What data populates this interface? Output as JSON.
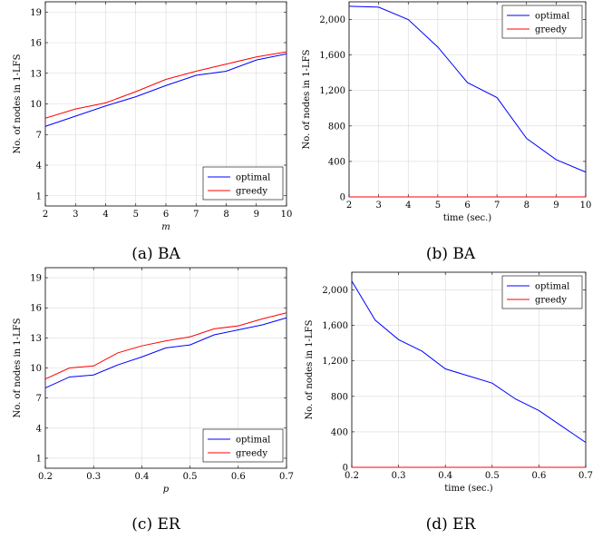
{
  "colors": {
    "optimal": "#0000ff",
    "greedy": "#ff0000",
    "grid": "#d9d9d9",
    "axis": "#000000"
  },
  "chart_data": [
    {
      "type": "line",
      "caption": "(a) BA",
      "xlabel": "m",
      "ylabel": "No. of nodes in 1-LFS",
      "x": [
        2,
        3,
        4,
        5,
        6,
        7,
        8,
        9,
        10
      ],
      "xticks": [
        "2",
        "3",
        "4",
        "5",
        "6",
        "7",
        "8",
        "9",
        "10"
      ],
      "xlim": [
        2,
        10
      ],
      "yticks": [
        "1",
        "4",
        "7",
        "10",
        "13",
        "16",
        "19"
      ],
      "ylim": [
        0,
        20
      ],
      "grid": true,
      "legend_position": "bottom-right",
      "series": [
        {
          "name": "optimal",
          "color": "#0000ff",
          "values": [
            7.8,
            8.8,
            9.8,
            10.7,
            11.8,
            12.8,
            13.2,
            14.3,
            14.9
          ]
        },
        {
          "name": "greedy",
          "color": "#ff0000",
          "values": [
            8.6,
            9.5,
            10.1,
            11.2,
            12.4,
            13.2,
            13.9,
            14.6,
            15.1
          ]
        }
      ]
    },
    {
      "type": "line",
      "caption": "(b) BA",
      "xlabel": "time (sec.)",
      "ylabel": "No. of nodes in 1-LFS",
      "x": [
        2,
        3,
        4,
        5,
        6,
        7,
        8,
        9,
        10
      ],
      "xticks": [
        "2",
        "3",
        "4",
        "5",
        "6",
        "7",
        "8",
        "9",
        "10"
      ],
      "xlim": [
        2,
        10
      ],
      "yticks": [
        "0",
        "400",
        "800",
        "1,200",
        "1,600",
        "2,000"
      ],
      "ylim": [
        0,
        2200
      ],
      "grid": true,
      "legend_position": "top-right",
      "series": [
        {
          "name": "optimal",
          "color": "#0000ff",
          "values": [
            2150,
            2140,
            2000,
            1690,
            1290,
            1120,
            660,
            420,
            280
          ]
        },
        {
          "name": "greedy",
          "color": "#ff0000",
          "values": [
            0,
            0,
            0,
            0,
            0,
            0,
            0,
            0,
            0
          ]
        }
      ]
    },
    {
      "type": "line",
      "caption": "(c) ER",
      "xlabel": "p",
      "ylabel": "No. of nodes in 1-LFS",
      "x": [
        0.2,
        0.25,
        0.3,
        0.35,
        0.4,
        0.45,
        0.5,
        0.55,
        0.6,
        0.65,
        0.7
      ],
      "xticks": [
        "0.2",
        "0.3",
        "0.4",
        "0.5",
        "0.6",
        "0.7"
      ],
      "xtick_values": [
        0.2,
        0.3,
        0.4,
        0.5,
        0.6,
        0.7
      ],
      "xlim": [
        0.2,
        0.7
      ],
      "yticks": [
        "1",
        "4",
        "7",
        "10",
        "13",
        "16",
        "19"
      ],
      "ylim": [
        0,
        20
      ],
      "grid": true,
      "legend_position": "bottom-right",
      "series": [
        {
          "name": "optimal",
          "color": "#0000ff",
          "values": [
            8.0,
            9.1,
            9.3,
            10.3,
            11.1,
            12.0,
            12.3,
            13.3,
            13.8,
            14.3,
            15.0
          ]
        },
        {
          "name": "greedy",
          "color": "#ff0000",
          "values": [
            8.9,
            10.0,
            10.2,
            11.5,
            12.2,
            12.7,
            13.1,
            13.9,
            14.2,
            14.9,
            15.5
          ]
        }
      ]
    },
    {
      "type": "line",
      "caption": "(d) ER",
      "xlabel": "time (sec.)",
      "ylabel": "No. of nodes in 1-LFS",
      "x": [
        0.2,
        0.25,
        0.3,
        0.35,
        0.4,
        0.45,
        0.5,
        0.55,
        0.6,
        0.65,
        0.7
      ],
      "xticks": [
        "0.2",
        "0.3",
        "0.4",
        "0.5",
        "0.6",
        "0.7"
      ],
      "xtick_values": [
        0.2,
        0.3,
        0.4,
        0.5,
        0.6,
        0.7
      ],
      "xlim": [
        0.2,
        0.7
      ],
      "yticks": [
        "0",
        "400",
        "800",
        "1,200",
        "1,600",
        "2,000"
      ],
      "ylim": [
        0,
        2200
      ],
      "grid": true,
      "legend_position": "top-right",
      "series": [
        {
          "name": "optimal",
          "color": "#0000ff",
          "values": [
            2100,
            1660,
            1440,
            1310,
            1110,
            1030,
            950,
            770,
            640,
            460,
            280
          ]
        },
        {
          "name": "greedy",
          "color": "#ff0000",
          "values": [
            0,
            0,
            0,
            0,
            0,
            0,
            0,
            0,
            0,
            0,
            0
          ]
        }
      ]
    }
  ]
}
